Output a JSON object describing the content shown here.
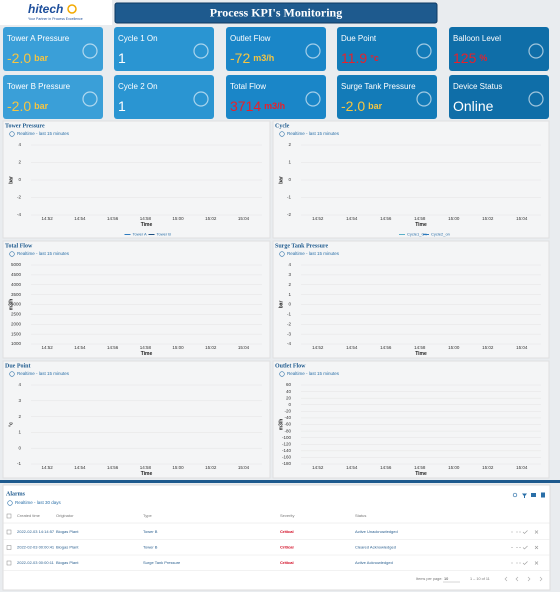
{
  "header": {
    "logo": "hitech",
    "tagline": "Your Partner in Process Excellence",
    "title": "Process KPI's Monitoring"
  },
  "tiles": [
    {
      "label": "Tower A Pressure",
      "value": "-2.0",
      "unit": "bar",
      "value_color": "#f5c542",
      "color": "#3a9fd8"
    },
    {
      "label": "Cycle 1 On",
      "value": "1",
      "value_color": "#ffffff",
      "color": "#2a95d2"
    },
    {
      "label": "Outlet Flow",
      "value": "-72",
      "unit": "m3/h",
      "value_color": "#f5c542",
      "color": "#1a86c8"
    },
    {
      "label": "Due Point",
      "value": "11.9",
      "unit": "°c",
      "value_color": "#e8202a",
      "color": "#137bb8"
    },
    {
      "label": "Balloon Level",
      "value": "125",
      "unit": "%",
      "value_color": "#e8202a",
      "color": "#0f6ea8"
    },
    {
      "label": "Tower B Pressure",
      "value": "-2.0",
      "unit": "bar",
      "value_color": "#f5c542",
      "color": "#3a9fd8"
    },
    {
      "label": "Cycle 2 On",
      "value": "1",
      "value_color": "#ffffff",
      "color": "#2a95d2"
    },
    {
      "label": "Total Flow",
      "value": "3714",
      "unit": "m3/h",
      "value_color": "#e8202a",
      "color": "#1a86c8"
    },
    {
      "label": "Surge Tank Pressure",
      "value": "-2.0",
      "unit": "bar",
      "value_color": "#f5c542",
      "color": "#137bb8"
    },
    {
      "label": "Device Status",
      "value": "Online",
      "value_color": "#ffffff",
      "color": "#0f6ea8"
    }
  ],
  "charts": [
    {
      "title": "Tower Pressure",
      "subtitle": "Realtime - last 15 minutes",
      "ylabel": "bar",
      "xlabel": "Time",
      "xticks": [
        "14:52",
        "14:54",
        "14:56",
        "14:58",
        "15:00",
        "15:02",
        "15:04"
      ],
      "ylim": [
        -4,
        4
      ],
      "yticks": [
        -4,
        -2,
        0,
        2,
        4
      ],
      "legend": [
        {
          "name": "Tower A",
          "color": "#2e7bbf"
        },
        {
          "name": "Tower B",
          "color": "#1d4f80"
        }
      ]
    },
    {
      "title": "Cycle",
      "subtitle": "Realtime - last 15 minutes",
      "ylabel": "bar",
      "xlabel": "Time",
      "xticks": [
        "14:52",
        "14:54",
        "14:56",
        "14:58",
        "15:00",
        "15:02",
        "15:04"
      ],
      "ylim": [
        -2,
        2
      ],
      "yticks": [
        -2,
        -1,
        0,
        1,
        2
      ],
      "legend": [
        {
          "name": "Cycle1_On",
          "color": "#5bb0c8"
        },
        {
          "name": "Cycle2_on",
          "color": "#2e7bbf"
        }
      ]
    },
    {
      "title": "Total Flow",
      "subtitle": "Realtime - last 15 minutes",
      "ylabel": "m3/h",
      "xlabel": "Time",
      "xticks": [
        "14:52",
        "14:54",
        "14:56",
        "14:58",
        "15:00",
        "15:02",
        "15:04"
      ],
      "ylim": [
        1000,
        5000
      ],
      "yticks": [
        1000,
        1500,
        2000,
        2500,
        3000,
        3500,
        4000,
        4500,
        5000
      ]
    },
    {
      "title": "Surge Tank Pressure",
      "subtitle": "Realtime - last 15 minutes",
      "ylabel": "bar",
      "xlabel": "Time",
      "xticks": [
        "14:52",
        "14:54",
        "14:56",
        "14:58",
        "15:00",
        "15:02",
        "15:04"
      ],
      "ylim": [
        -4,
        4
      ],
      "yticks": [
        -4,
        -3,
        -2,
        -1,
        0,
        1,
        2,
        3,
        4
      ]
    },
    {
      "title": "Due Point",
      "subtitle": "Realtime - last 15 minutes",
      "ylabel": "°c",
      "xlabel": "Time",
      "xticks": [
        "14:52",
        "14:54",
        "14:56",
        "14:58",
        "15:00",
        "15:02",
        "15:04"
      ],
      "ylim": [
        -1,
        4
      ],
      "yticks": [
        -1,
        0,
        1,
        2,
        3,
        4
      ]
    },
    {
      "title": "Outlet Flow",
      "subtitle": "Realtime - last 15 minutes",
      "ylabel": "m3/h",
      "xlabel": "Time",
      "xticks": [
        "14:52",
        "14:54",
        "14:56",
        "14:58",
        "15:00",
        "15:02",
        "15:04"
      ],
      "ylim": [
        -180,
        60
      ],
      "yticks": [
        -180,
        -160,
        -140,
        -120,
        -100,
        -80,
        -60,
        -40,
        -20,
        0,
        20,
        40,
        60
      ]
    }
  ],
  "alarms": {
    "title": "Alarms",
    "subtitle": "Realtime - last 30 days",
    "columns": [
      "Created time",
      "Originator",
      "Type",
      "Severity",
      "Status"
    ],
    "rows": [
      [
        "2022-02-03 14:14:57",
        "Biogas Plant",
        "Tower B",
        "Critical",
        "Active Unacknowledged"
      ],
      [
        "2022-02-03 00:00:41",
        "Biogas Plant",
        "Tower B",
        "Critical",
        "Cleared Acknowledged"
      ],
      [
        "2022-02-03 00:00:11",
        "Biogas Plant",
        "Surge Tank Pressure",
        "Critical",
        "Active Acknowledged"
      ]
    ],
    "footer": {
      "items_per_page": "Items per page:",
      "page_size": "10",
      "range": "1 – 10 of 11"
    }
  }
}
